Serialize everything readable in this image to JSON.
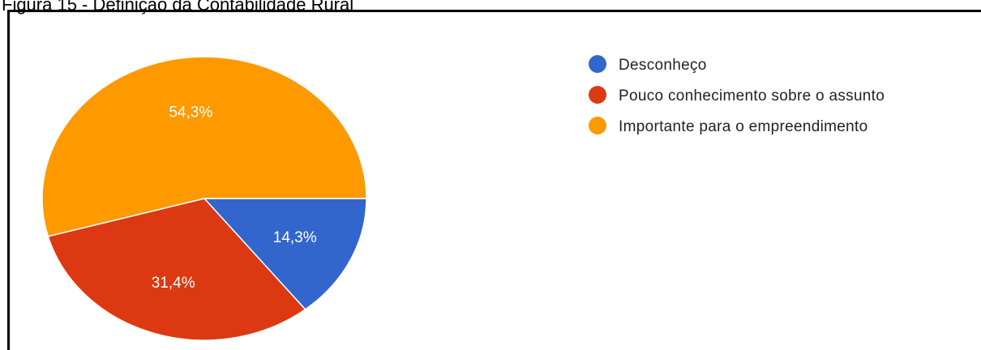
{
  "caption": "Figura 15 - Definição da Contabilidade Rural",
  "chart_data": {
    "type": "pie",
    "categories": [
      "Desconheço",
      "Pouco conhecimento sobre o assunto",
      "Importante para o empreendimento"
    ],
    "values": [
      14.3,
      31.4,
      54.3
    ],
    "labels": [
      "14,3%",
      "31,4%",
      "54,3%"
    ],
    "colors": [
      "#3366cc",
      "#dc3912",
      "#ff9900"
    ],
    "legend_position": "right"
  }
}
